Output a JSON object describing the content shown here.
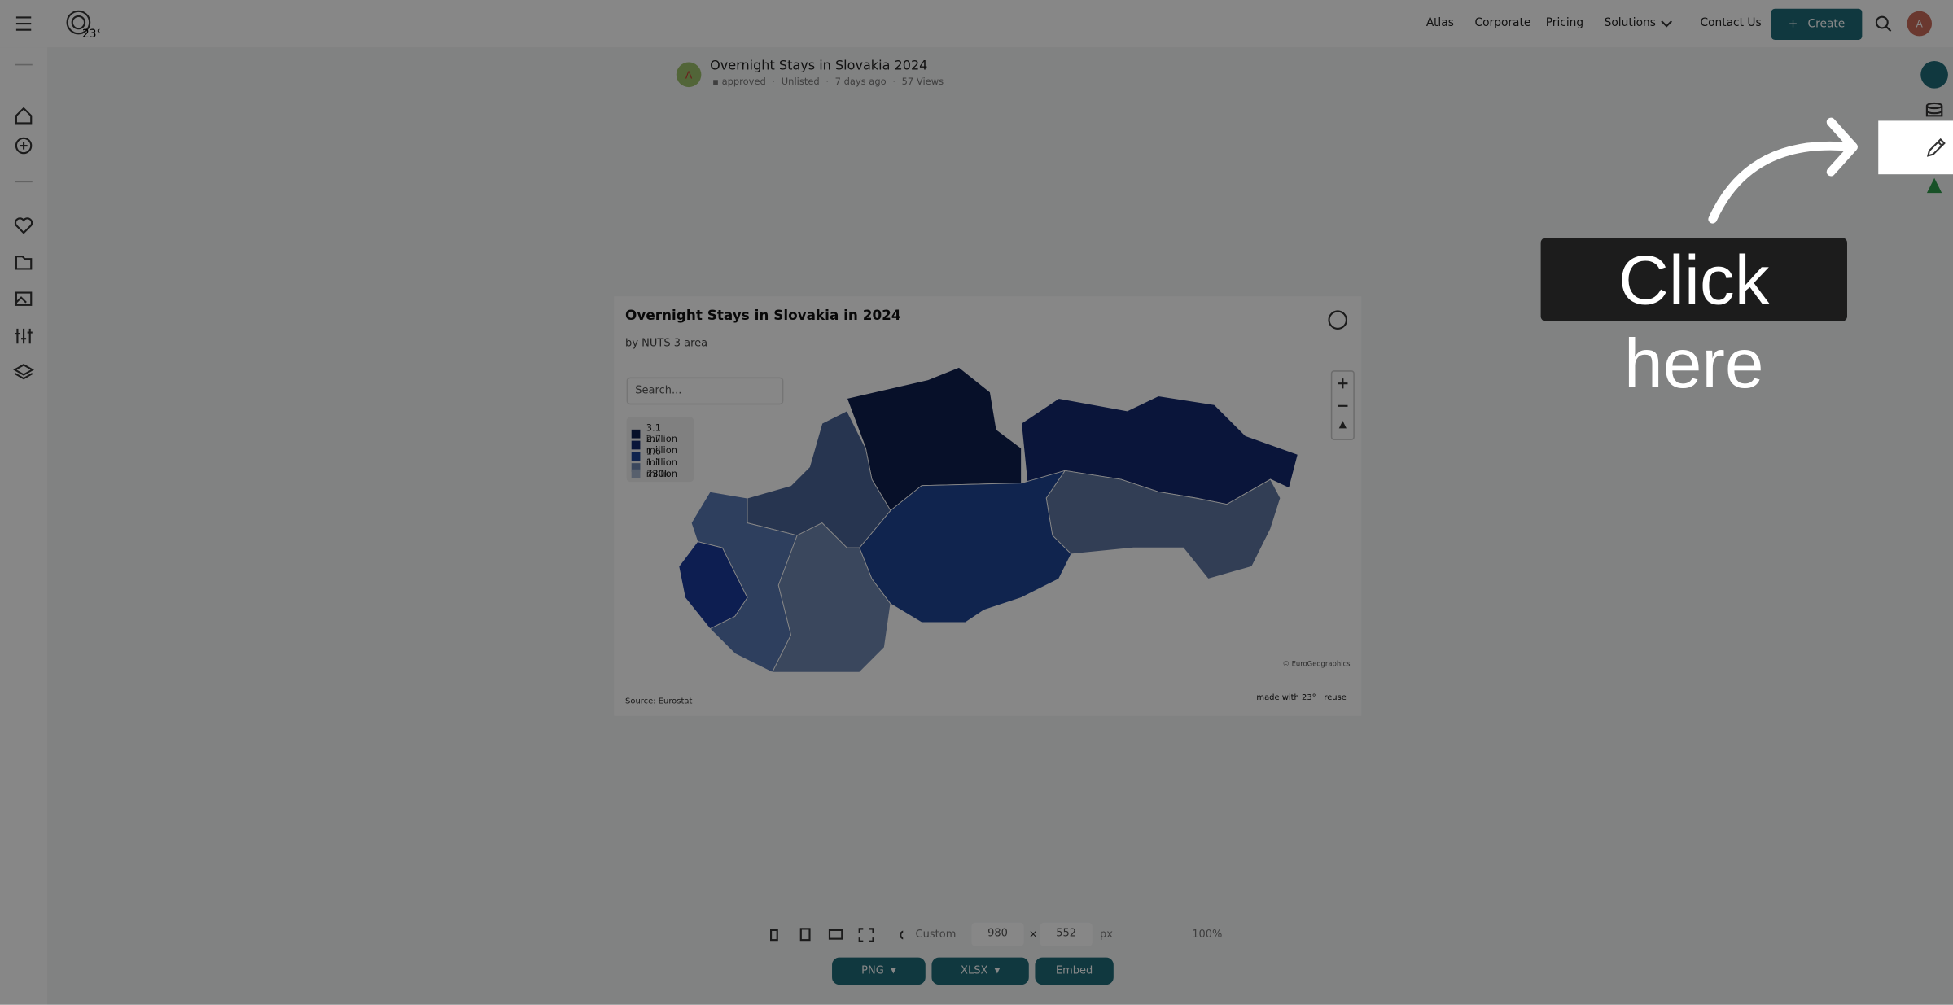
{
  "header": {
    "logo": "23°",
    "nav": [
      "Atlas",
      "Corporate",
      "Pricing",
      "Solutions",
      "Contact Us"
    ],
    "create": "Create",
    "avatar": "A"
  },
  "post": {
    "avatar": "A",
    "title": "Overnight Stays in Slovakia 2024",
    "meta": [
      "approved",
      "Unlisted",
      "7 days ago",
      "57 Views"
    ]
  },
  "chart": {
    "title": "Overnight Stays in Slovakia in 2024",
    "subtitle": "by NUTS 3 area",
    "search": "Search...",
    "legend": [
      "3.1 million",
      "2.7 million",
      "1.6 million",
      "1.1 million",
      "730k"
    ],
    "attribution": "© EuroGeographics",
    "source": "Source: Eurostat",
    "credit": "made with 23° | reuse"
  },
  "toolbar": {
    "preset": "Custom",
    "width": 980,
    "times": "×",
    "height": 552,
    "unit": "px",
    "zoom": "100%"
  },
  "exports": [
    "PNG",
    "XLSX",
    "Embed"
  ],
  "callout": "Click here"
}
